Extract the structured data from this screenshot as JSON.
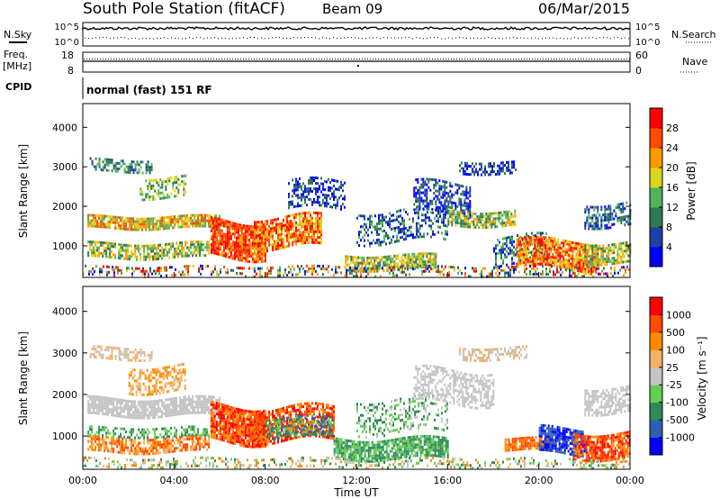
{
  "header": {
    "station": "South Pole Station (fitACF)",
    "beam": "Beam 09",
    "date": "06/Mar/2015"
  },
  "panels": {
    "nsky_label": "N.Sky",
    "nsky_ticks": [
      "10^5",
      "10^0"
    ],
    "nsearch_label": "N.Search",
    "nsearch_ticks": [
      "10^5",
      "10^0"
    ],
    "freq_label": "Freq.",
    "freq_unit": "[MHz]",
    "freq_ticks": [
      "18",
      "8"
    ],
    "nave_label": "Nave",
    "nave_ticks": [
      "60",
      "0"
    ],
    "cpid_label": "CPID",
    "cpid_text": "normal (fast) 151 RF"
  },
  "chart_data": [
    {
      "type": "heatmap",
      "name": "power",
      "ylabel": "Slant Range [km]",
      "yticks": [
        "1000",
        "2000",
        "3000",
        "4000"
      ],
      "ylim": [
        200,
        4600
      ],
      "xlim": [
        0,
        24
      ],
      "colorbar": {
        "label": "Power [dB]",
        "ticks": [
          "4",
          "8",
          "12",
          "16",
          "20",
          "24",
          "28"
        ],
        "colors": [
          "#0000ff",
          "#1f3fa8",
          "#2f7a52",
          "#52b25a",
          "#d7d61c",
          "#ff9a00",
          "#ff4a00",
          "#ff0000"
        ]
      }
    },
    {
      "type": "heatmap",
      "name": "velocity",
      "ylabel": "Slant Range [km]",
      "yticks": [
        "1000",
        "2000",
        "3000",
        "4000"
      ],
      "ylim": [
        200,
        4600
      ],
      "xlim": [
        0,
        24
      ],
      "xticks": [
        "00:00",
        "04:00",
        "08:00",
        "12:00",
        "16:00",
        "20:00",
        "00:00"
      ],
      "xlabel": "Time UT",
      "colorbar": {
        "label": "Velocity [m s⁻¹]",
        "ticks": [
          "1000",
          "500",
          "100",
          "25",
          "-25",
          "-100",
          "-500",
          "-1000"
        ],
        "colors": [
          "#0000ff",
          "#2f5fb4",
          "#2f8a5a",
          "#66cc55",
          "#c4c4c4",
          "#f2b266",
          "#ff8a00",
          "#ff4a00",
          "#ff0000"
        ]
      }
    }
  ]
}
